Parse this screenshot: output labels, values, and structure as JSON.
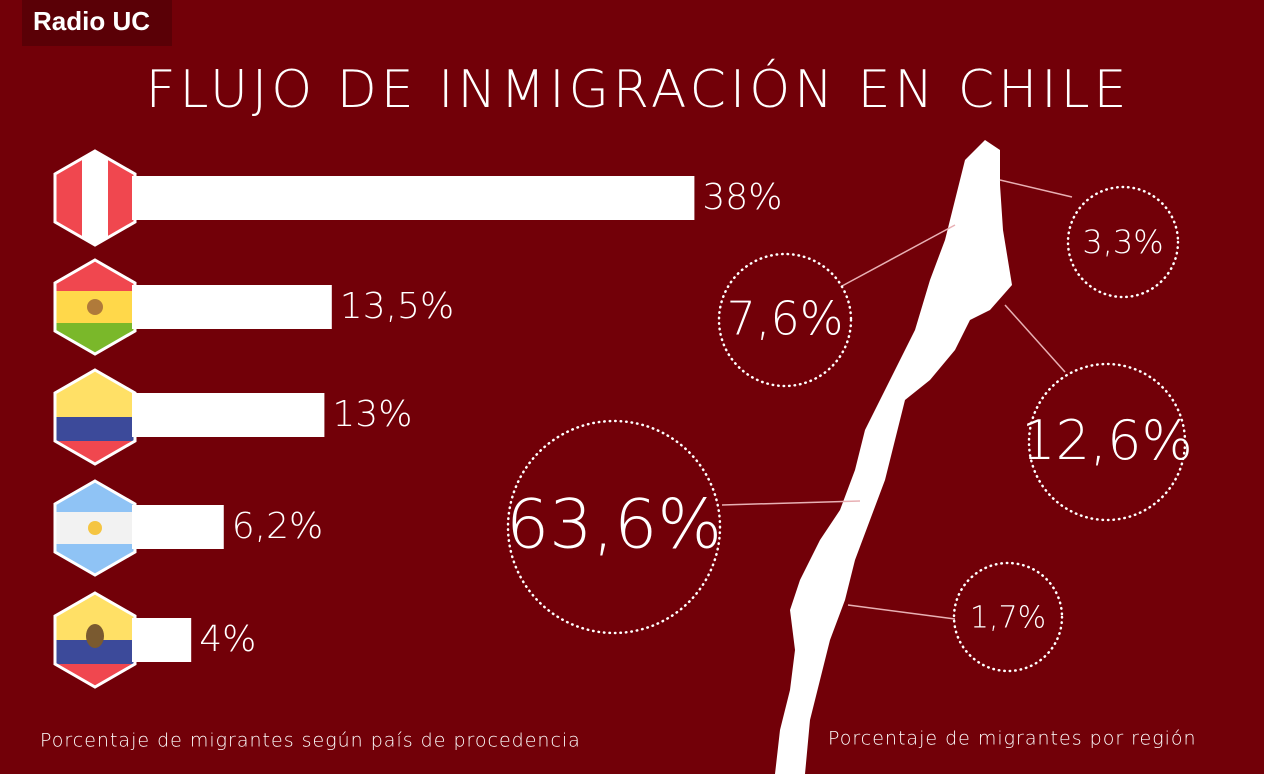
{
  "brand": "Radio UC",
  "title": "FLUJO DE INMIGRACIÓN EN CHILE",
  "chart_data": [
    {
      "type": "bar",
      "categories": [
        null,
        null,
        null,
        null,
        null
      ],
      "values": [
        38,
        13.5,
        13,
        6.2,
        4
      ],
      "value_labels": [
        "38%",
        "13,5%",
        "13%",
        "6,2%",
        "4%"
      ],
      "color": "#ffffff",
      "caption": "Porcentaje de migrantes según país de procedencia"
    },
    {
      "type": "bubble",
      "categories": [
        null,
        null,
        null,
        null,
        null
      ],
      "values": [
        3.3,
        7.6,
        12.6,
        63.6,
        1.7
      ],
      "value_labels": [
        "3,3%",
        "7,6%",
        "12,6%",
        "63,6%",
        "1,7%"
      ],
      "color": "#ffffff",
      "caption": "Porcentaje de migrantes por región"
    }
  ]
}
